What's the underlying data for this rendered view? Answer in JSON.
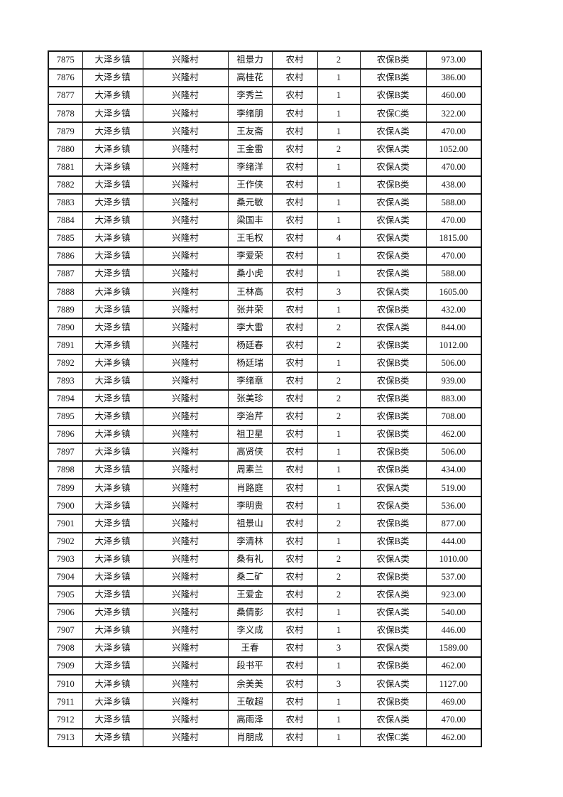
{
  "document": {
    "background_color": "#ffffff",
    "text_color": "#111111",
    "border_color": "#1a1a1a"
  },
  "table": {
    "rows": [
      [
        "7875",
        "大泽乡镇",
        "兴隆村",
        "祖景力",
        "农村",
        "2",
        "农保B类",
        "973.00"
      ],
      [
        "7876",
        "大泽乡镇",
        "兴隆村",
        "高桂花",
        "农村",
        "1",
        "农保B类",
        "386.00"
      ],
      [
        "7877",
        "大泽乡镇",
        "兴隆村",
        "李秀兰",
        "农村",
        "1",
        "农保B类",
        "460.00"
      ],
      [
        "7878",
        "大泽乡镇",
        "兴隆村",
        "李绪朋",
        "农村",
        "1",
        "农保C类",
        "322.00"
      ],
      [
        "7879",
        "大泽乡镇",
        "兴隆村",
        "王友斋",
        "农村",
        "1",
        "农保A类",
        "470.00"
      ],
      [
        "7880",
        "大泽乡镇",
        "兴隆村",
        "王金雷",
        "农村",
        "2",
        "农保A类",
        "1052.00"
      ],
      [
        "7881",
        "大泽乡镇",
        "兴隆村",
        "李绪洋",
        "农村",
        "1",
        "农保A类",
        "470.00"
      ],
      [
        "7882",
        "大泽乡镇",
        "兴隆村",
        "王作侠",
        "农村",
        "1",
        "农保B类",
        "438.00"
      ],
      [
        "7883",
        "大泽乡镇",
        "兴隆村",
        "桑元敏",
        "农村",
        "1",
        "农保A类",
        "588.00"
      ],
      [
        "7884",
        "大泽乡镇",
        "兴隆村",
        "梁国丰",
        "农村",
        "1",
        "农保A类",
        "470.00"
      ],
      [
        "7885",
        "大泽乡镇",
        "兴隆村",
        "王毛权",
        "农村",
        "4",
        "农保A类",
        "1815.00"
      ],
      [
        "7886",
        "大泽乡镇",
        "兴隆村",
        "李爱荣",
        "农村",
        "1",
        "农保A类",
        "470.00"
      ],
      [
        "7887",
        "大泽乡镇",
        "兴隆村",
        "桑小虎",
        "农村",
        "1",
        "农保A类",
        "588.00"
      ],
      [
        "7888",
        "大泽乡镇",
        "兴隆村",
        "王林高",
        "农村",
        "3",
        "农保A类",
        "1605.00"
      ],
      [
        "7889",
        "大泽乡镇",
        "兴隆村",
        "张井荣",
        "农村",
        "1",
        "农保B类",
        "432.00"
      ],
      [
        "7890",
        "大泽乡镇",
        "兴隆村",
        "李大雷",
        "农村",
        "2",
        "农保A类",
        "844.00"
      ],
      [
        "7891",
        "大泽乡镇",
        "兴隆村",
        "杨廷春",
        "农村",
        "2",
        "农保B类",
        "1012.00"
      ],
      [
        "7892",
        "大泽乡镇",
        "兴隆村",
        "杨廷瑞",
        "农村",
        "1",
        "农保B类",
        "506.00"
      ],
      [
        "7893",
        "大泽乡镇",
        "兴隆村",
        "李绪章",
        "农村",
        "2",
        "农保B类",
        "939.00"
      ],
      [
        "7894",
        "大泽乡镇",
        "兴隆村",
        "张美珍",
        "农村",
        "2",
        "农保B类",
        "883.00"
      ],
      [
        "7895",
        "大泽乡镇",
        "兴隆村",
        "李治芹",
        "农村",
        "2",
        "农保B类",
        "708.00"
      ],
      [
        "7896",
        "大泽乡镇",
        "兴隆村",
        "祖卫星",
        "农村",
        "1",
        "农保B类",
        "462.00"
      ],
      [
        "7897",
        "大泽乡镇",
        "兴隆村",
        "高贤侠",
        "农村",
        "1",
        "农保B类",
        "506.00"
      ],
      [
        "7898",
        "大泽乡镇",
        "兴隆村",
        "周素兰",
        "农村",
        "1",
        "农保B类",
        "434.00"
      ],
      [
        "7899",
        "大泽乡镇",
        "兴隆村",
        "肖路庭",
        "农村",
        "1",
        "农保A类",
        "519.00"
      ],
      [
        "7900",
        "大泽乡镇",
        "兴隆村",
        "李明贵",
        "农村",
        "1",
        "农保A类",
        "536.00"
      ],
      [
        "7901",
        "大泽乡镇",
        "兴隆村",
        "祖景山",
        "农村",
        "2",
        "农保B类",
        "877.00"
      ],
      [
        "7902",
        "大泽乡镇",
        "兴隆村",
        "李清林",
        "农村",
        "1",
        "农保B类",
        "444.00"
      ],
      [
        "7903",
        "大泽乡镇",
        "兴隆村",
        "桑有礼",
        "农村",
        "2",
        "农保A类",
        "1010.00"
      ],
      [
        "7904",
        "大泽乡镇",
        "兴隆村",
        "桑二矿",
        "农村",
        "2",
        "农保B类",
        "537.00"
      ],
      [
        "7905",
        "大泽乡镇",
        "兴隆村",
        "王爱金",
        "农村",
        "2",
        "农保A类",
        "923.00"
      ],
      [
        "7906",
        "大泽乡镇",
        "兴隆村",
        "桑倩影",
        "农村",
        "1",
        "农保A类",
        "540.00"
      ],
      [
        "7907",
        "大泽乡镇",
        "兴隆村",
        "李义成",
        "农村",
        "1",
        "农保B类",
        "446.00"
      ],
      [
        "7908",
        "大泽乡镇",
        "兴隆村",
        "王春",
        "农村",
        "3",
        "农保A类",
        "1589.00"
      ],
      [
        "7909",
        "大泽乡镇",
        "兴隆村",
        "段书平",
        "农村",
        "1",
        "农保B类",
        "462.00"
      ],
      [
        "7910",
        "大泽乡镇",
        "兴隆村",
        "余美美",
        "农村",
        "3",
        "农保A类",
        "1127.00"
      ],
      [
        "7911",
        "大泽乡镇",
        "兴隆村",
        "王敬超",
        "农村",
        "1",
        "农保B类",
        "469.00"
      ],
      [
        "7912",
        "大泽乡镇",
        "兴隆村",
        "高雨泽",
        "农村",
        "1",
        "农保A类",
        "470.00"
      ],
      [
        "7913",
        "大泽乡镇",
        "兴隆村",
        "肖朋成",
        "农村",
        "1",
        "农保C类",
        "462.00"
      ]
    ]
  }
}
